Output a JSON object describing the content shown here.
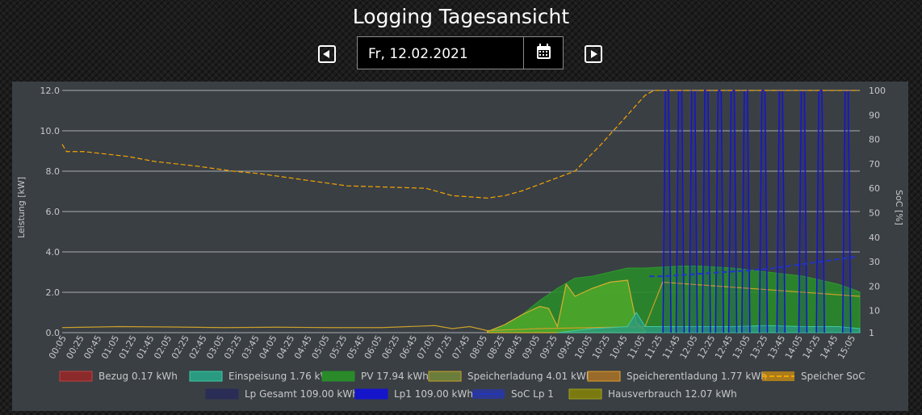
{
  "header": {
    "title": "Logging Tagesansicht"
  },
  "date_picker": {
    "value": "Fr, 12.02.2021",
    "prev_icon": "chevron-left-icon",
    "next_icon": "chevron-right-icon",
    "calendar_icon": "calendar-icon"
  },
  "colors": {
    "panel": "#3a3f44",
    "grid": "#cfd2d5",
    "text": "#c8c8c8",
    "bezug": "#8b2a2a",
    "einspeisung": "#2bb08f",
    "pv": "#2a8a2a",
    "speicherladung": "#6f8a3a",
    "speicherentladung": "#9a6a2a",
    "soc": "#f5a500",
    "lp_gesamt": "#2a2d55",
    "lp1": "#1515cc",
    "soc_lp1": "#2233cc",
    "hausverbrauch": "#8a8a10"
  },
  "chart_data": {
    "type": "line",
    "ylabel": "Leistung [kW]",
    "y2label": "SoC [%]",
    "ylim": [
      0,
      12
    ],
    "y2lim": [
      1,
      100
    ],
    "yticks": [
      "0.0",
      "2.0",
      "4.0",
      "6.0",
      "8.0",
      "10.0",
      "12.0"
    ],
    "y2ticks": [
      "1",
      "10",
      "20",
      "30",
      "40",
      "50",
      "60",
      "70",
      "80",
      "90",
      "100"
    ],
    "x_labels": [
      "00:05",
      "00:25",
      "00:45",
      "01:05",
      "01:25",
      "01:45",
      "02:05",
      "02:25",
      "02:45",
      "03:05",
      "03:25",
      "03:45",
      "04:05",
      "04:25",
      "04:45",
      "05:05",
      "05:25",
      "05:45",
      "06:05",
      "06:25",
      "06:45",
      "07:05",
      "07:25",
      "07:45",
      "08:05",
      "08:25",
      "08:45",
      "09:05",
      "09:25",
      "09:45",
      "10:05",
      "10:25",
      "10:45",
      "11:05",
      "11:25",
      "11:45",
      "12:05",
      "12:25",
      "12:45",
      "13:05",
      "13:25",
      "13:45",
      "14:05",
      "14:25",
      "14:45",
      "15:05"
    ],
    "grid": true,
    "legend_position": "bottom",
    "legend": [
      {
        "label": "Bezug 0.17 kWh",
        "color": "#8b2a2a",
        "border": "#c04040",
        "style": "box"
      },
      {
        "label": "Einspeisung 1.76 kWh",
        "color": "#2a9a80",
        "border": "#3cc9a5",
        "style": "box"
      },
      {
        "label": "PV 17.94 kWh",
        "color": "#2a8a2a",
        "border": "#2a8a2a",
        "style": "box"
      },
      {
        "label": "Speicherladung 4.01 kWh",
        "color": "#6b7d3a",
        "border": "#c9a02a",
        "style": "box"
      },
      {
        "label": "Speicherentladung 1.77 kWh",
        "color": "#9a6a2a",
        "border": "#e0a030",
        "style": "box"
      },
      {
        "label": "Speicher SoC",
        "color": "#f5a500",
        "border": "#f5a500",
        "style": "dash"
      },
      {
        "label": "Lp Gesamt 109.00 kWh",
        "color": "#2a2d55",
        "border": "#2a2d55",
        "style": "box"
      },
      {
        "label": "Lp1 109.00 kWh",
        "color": "#1515cc",
        "border": "#1515cc",
        "style": "box"
      },
      {
        "label": "SoC Lp 1",
        "color": "#2233cc",
        "border": "#2233cc",
        "style": "dash"
      },
      {
        "label": "Hausverbrauch 12.07 kWh",
        "color": "#7a7a10",
        "border": "#a0a020",
        "style": "box"
      }
    ],
    "series": [
      {
        "name": "Speicher SoC",
        "axis": "y2",
        "style": "dashed",
        "x": [
          "00:00",
          "00:05",
          "00:25",
          "01:15",
          "01:45",
          "02:35",
          "03:15",
          "03:45",
          "04:45",
          "05:25",
          "06:55",
          "07:25",
          "08:05",
          "08:25",
          "08:45",
          "09:45",
          "10:15",
          "10:45",
          "11:05",
          "11:15",
          "15:10"
        ],
        "values": [
          78,
          75,
          75,
          73,
          71,
          69,
          67,
          66,
          63,
          61,
          60,
          57,
          56,
          57,
          59,
          67,
          78,
          90,
          98,
          100,
          100
        ]
      },
      {
        "name": "PV",
        "axis": "y",
        "x": [
          "08:05",
          "08:25",
          "08:45",
          "09:05",
          "09:25",
          "09:45",
          "10:05",
          "10:25",
          "10:45",
          "11:05",
          "11:25",
          "11:45",
          "12:05",
          "12:25",
          "12:45",
          "13:05",
          "13:25",
          "13:45",
          "14:05",
          "14:25",
          "14:45",
          "15:05",
          "15:10"
        ],
        "values": [
          0.05,
          0.3,
          0.9,
          1.6,
          2.2,
          2.7,
          2.8,
          3.0,
          3.2,
          3.2,
          3.25,
          3.3,
          3.3,
          3.25,
          3.2,
          3.1,
          3.0,
          2.9,
          2.8,
          2.6,
          2.4,
          2.1,
          2.0
        ]
      },
      {
        "name": "Speicherladung",
        "axis": "y",
        "x": [
          "08:05",
          "08:25",
          "08:45",
          "09:05",
          "09:15",
          "09:25",
          "09:35",
          "09:45",
          "09:55",
          "10:05",
          "10:25",
          "10:45",
          "10:55",
          "11:05"
        ],
        "values": [
          0.05,
          0.4,
          0.9,
          1.3,
          1.2,
          0.3,
          2.4,
          1.8,
          2.0,
          2.2,
          2.5,
          2.6,
          0.5,
          0.1
        ]
      },
      {
        "name": "Einspeisung",
        "axis": "y",
        "x": [
          "09:25",
          "09:45",
          "10:05",
          "10:45",
          "10:55",
          "11:05",
          "11:25",
          "12:05",
          "12:45",
          "13:25",
          "14:05",
          "14:45",
          "15:10"
        ],
        "values": [
          0.0,
          0.1,
          0.2,
          0.3,
          1.0,
          0.3,
          0.3,
          0.3,
          0.3,
          0.35,
          0.3,
          0.3,
          0.2
        ]
      },
      {
        "name": "Hausverbrauch",
        "axis": "y",
        "x": [
          "00:00",
          "01:05",
          "02:05",
          "03:05",
          "04:05",
          "05:05",
          "06:05",
          "07:05",
          "07:25",
          "07:45",
          "08:05",
          "09:05",
          "10:05",
          "11:05",
          "11:25",
          "15:10"
        ],
        "values": [
          0.25,
          0.3,
          0.28,
          0.25,
          0.27,
          0.25,
          0.25,
          0.35,
          0.2,
          0.3,
          0.1,
          0.2,
          0.25,
          0.3,
          2.5,
          1.8
        ]
      },
      {
        "name": "Lp1",
        "axis": "y",
        "style": "spikes",
        "peak_times": [
          "11:30",
          "11:45",
          "12:00",
          "12:15",
          "12:30",
          "12:45",
          "13:00",
          "13:20",
          "13:40",
          "14:05",
          "14:25",
          "14:55"
        ],
        "peak_value": 12.0,
        "base_value": 0.0
      },
      {
        "name": "SoC Lp 1",
        "axis": "y2",
        "style": "dashed",
        "x": [
          "11:10",
          "11:25",
          "12:05",
          "12:45",
          "13:25",
          "14:05",
          "14:45",
          "15:05"
        ],
        "values": [
          24,
          24,
          25,
          26,
          27,
          29,
          31,
          32
        ]
      }
    ]
  }
}
